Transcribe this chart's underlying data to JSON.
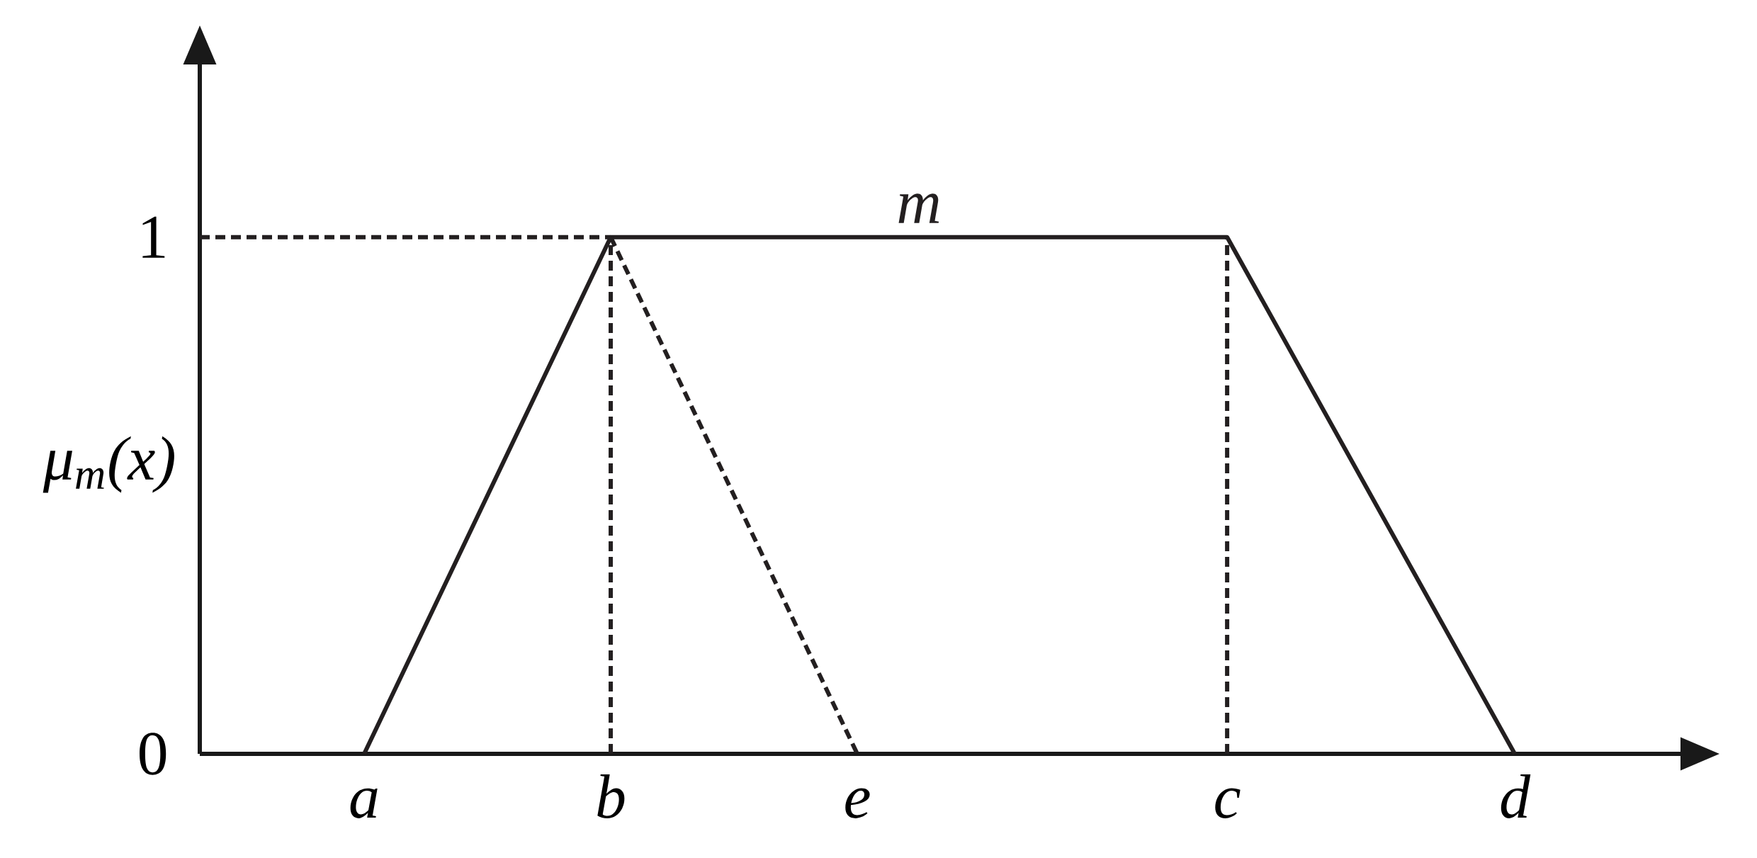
{
  "chart_data": {
    "type": "line",
    "ylabel": "μ$_{m}$(x)",
    "categories": [
      null,
      null,
      null,
      null,
      "a",
      null,
      null,
      null,
      null,
      null,
      "b",
      null,
      null,
      null,
      null,
      null,
      "e",
      null,
      null,
      null,
      null,
      null,
      null,
      null,
      null,
      "c",
      null,
      null,
      null,
      null,
      null,
      null,
      "d",
      null,
      null,
      null,
      null
    ],
    "ylim": [
      0,
      1.4
    ],
    "yticks": [
      0,
      1
    ],
    "series": [
      {
        "name": "m",
        "color": "#231f20",
        "line_style": "solid",
        "x": [
          "a",
          "b",
          "c",
          "d"
        ],
        "values": [
          0,
          1,
          1,
          0
        ]
      },
      {
        "color": "#231f20",
        "line_style": "dashed",
        "x": [
          "b",
          "e"
        ],
        "values": [
          1,
          0
        ]
      },
      {
        "color": "#231f20",
        "line_style": "dashed",
        "values": [
          1,
          1,
          1,
          1,
          1,
          1,
          1,
          1,
          1,
          1,
          1,
          null,
          null,
          null,
          null,
          null,
          null,
          null,
          null,
          null,
          null,
          null,
          null,
          null,
          null,
          null,
          null,
          null,
          null,
          null,
          null,
          null,
          null,
          null,
          null,
          null,
          null
        ]
      },
      {
        "color": "#231f20",
        "line_style": "dashed",
        "x": [
          "b",
          "b"
        ],
        "values": [
          0,
          1
        ]
      },
      {
        "color": "#231f20",
        "line_style": "dashed",
        "x": [
          "c",
          "c"
        ],
        "values": [
          0,
          1
        ]
      }
    ]
  }
}
